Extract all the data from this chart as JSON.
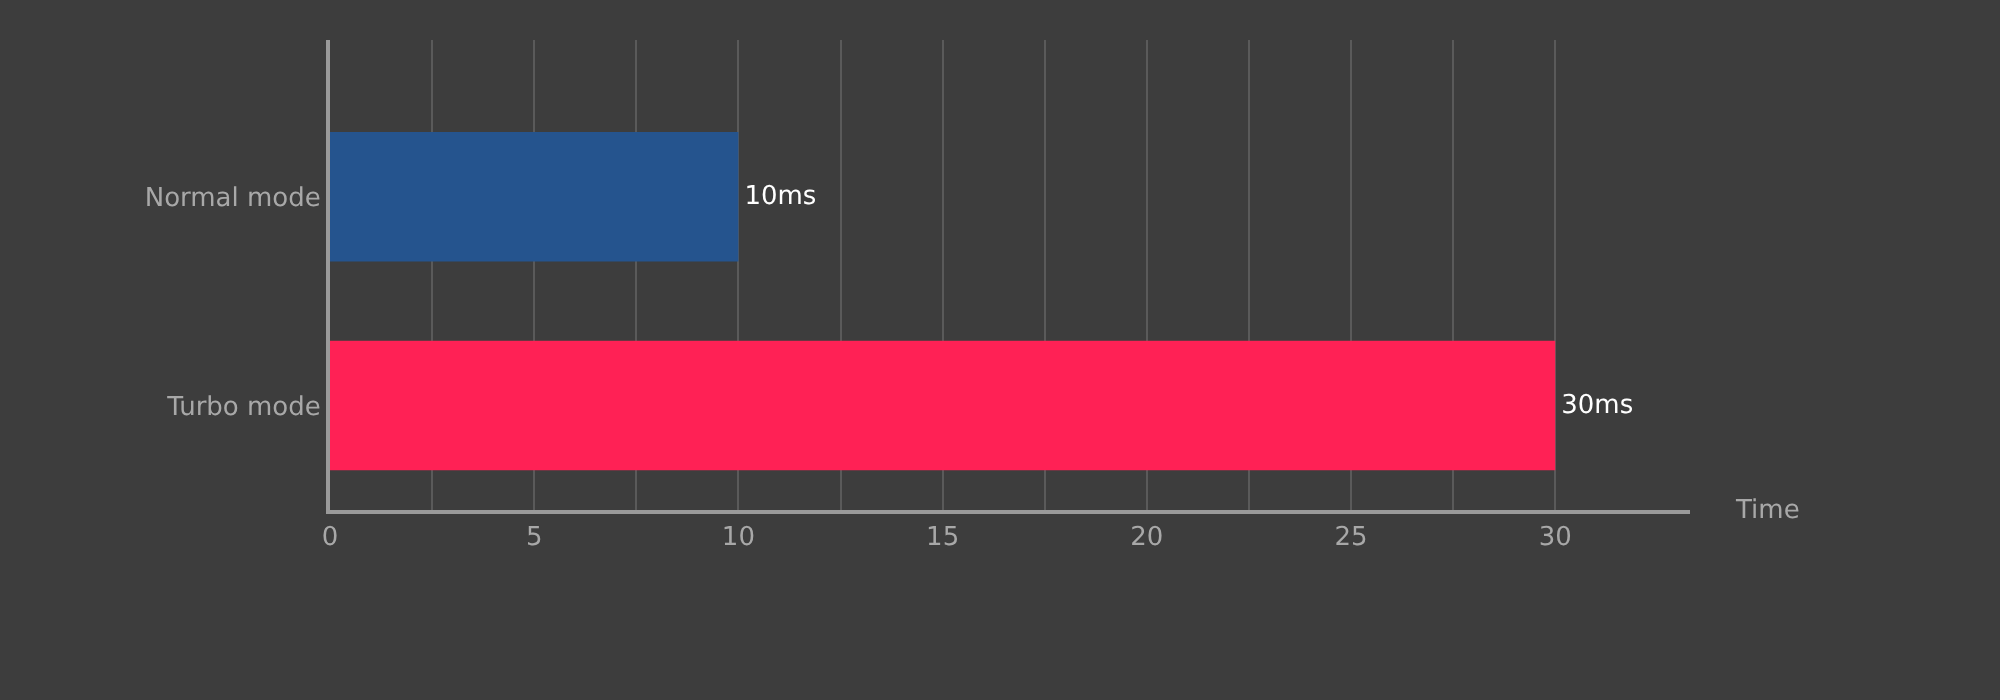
{
  "chart_data": {
    "type": "bar",
    "orientation": "horizontal",
    "xlabel": "Time",
    "categories": [
      "Normal mode",
      "Turbo mode"
    ],
    "values": [
      10,
      30
    ],
    "colors": [
      "#25548e",
      "#ff2155"
    ],
    "value_labels": [
      "10ms",
      "30ms"
    ],
    "xlim": [
      0,
      33.3
    ],
    "xticks": [
      0,
      {
        "value": 2.5,
        "label": null
      },
      5,
      {
        "value": 7.5,
        "label": null
      },
      10,
      {
        "value": 12.5,
        "label": null
      },
      15,
      {
        "value": 17.5,
        "label": null
      },
      20,
      {
        "value": 22.5,
        "label": null
      },
      25,
      {
        "value": 27.5,
        "label": null
      },
      30
    ],
    "grid": "x"
  }
}
